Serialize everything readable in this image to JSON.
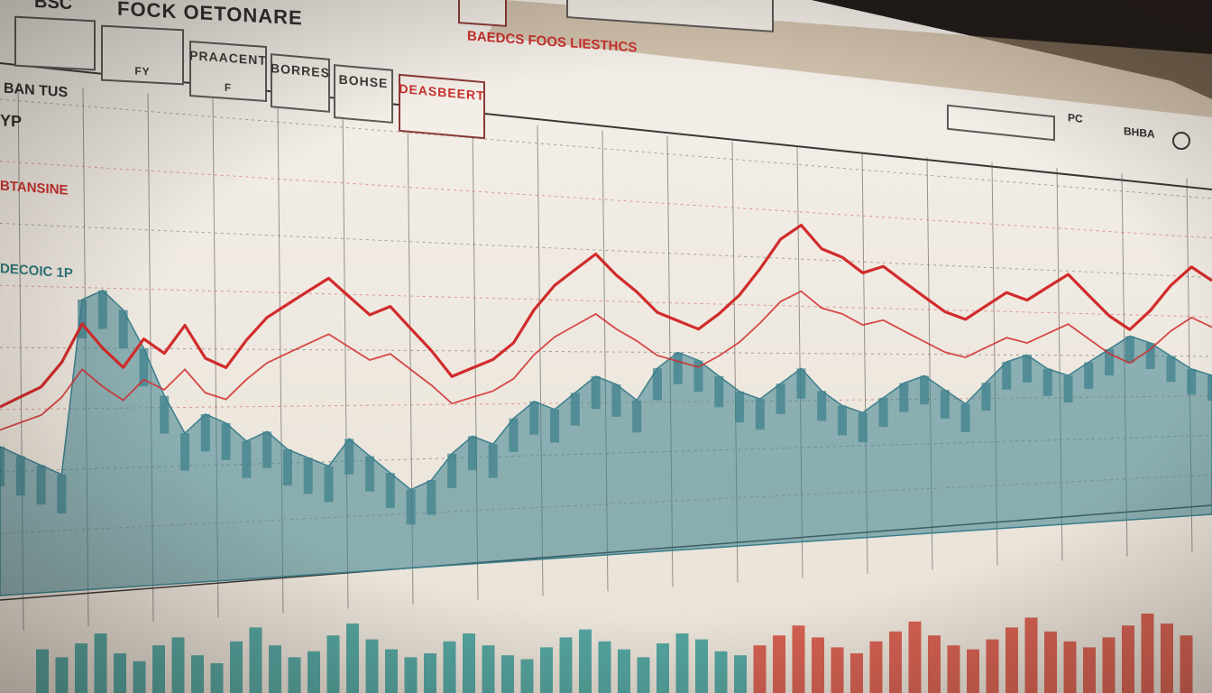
{
  "header": {
    "app_title": "FOCK OETONARE",
    "app_title_prefix": "BSC",
    "top_tab_left": "",
    "top_tab_right": ""
  },
  "toolbar": {
    "buttons": [
      {
        "label": "",
        "sub": ""
      },
      {
        "label": "",
        "sub": "FY"
      },
      {
        "label": "PRAACENT",
        "sub": "F"
      },
      {
        "label": "BORRES",
        "sub": ""
      },
      {
        "label": "BOHSE",
        "sub": ""
      }
    ],
    "active_tab": "DEASBEERT",
    "chart_title": "BAEDCS FOOS LIESTHCS"
  },
  "sidebar": {
    "items": [
      {
        "label": "BAN TUS",
        "accent": "dark"
      },
      {
        "label": "YP",
        "accent": "dark"
      },
      {
        "label": "BTANSINE",
        "accent": "red"
      },
      {
        "label": "DECOIC 1P",
        "accent": "teal"
      }
    ]
  },
  "right_panel": {
    "input_value": "",
    "labels": [
      "PC",
      "BHBA"
    ]
  },
  "chart_data": {
    "type": "line",
    "title": "BAEDCS FOOS LIESTHCS",
    "xlabel": "",
    "ylabel": "",
    "series": [
      {
        "color": "#d12b2b",
        "values": [
          38,
          40,
          42,
          47,
          55,
          50,
          46,
          52,
          49,
          55,
          48,
          46,
          52,
          57,
          60,
          63,
          66,
          62,
          58,
          60,
          55,
          50,
          44,
          46,
          48,
          52,
          60,
          66,
          70,
          74,
          69,
          65,
          60,
          58,
          56,
          60,
          65,
          72,
          80,
          84,
          78,
          76,
          72,
          74,
          70,
          66,
          62,
          60,
          64,
          68,
          66,
          70,
          74,
          68,
          62,
          58,
          64,
          72,
          78,
          74
        ]
      },
      {
        "color": "#3b7f8c",
        "values": [
          30,
          28,
          26,
          24,
          60,
          62,
          58,
          50,
          40,
          32,
          36,
          34,
          30,
          32,
          28,
          26,
          24,
          30,
          26,
          22,
          18,
          20,
          26,
          30,
          28,
          34,
          38,
          36,
          40,
          44,
          42,
          38,
          46,
          50,
          48,
          44,
          40,
          38,
          42,
          46,
          40,
          36,
          34,
          38,
          42,
          44,
          40,
          36,
          42,
          48,
          50,
          46,
          44,
          48,
          52,
          56,
          54,
          50,
          46,
          44
        ]
      }
    ],
    "volume": [
      22,
      18,
      25,
      30,
      20,
      16,
      24,
      28,
      19,
      15,
      26,
      33,
      24,
      18,
      21,
      29,
      35,
      27,
      22,
      18,
      20,
      26,
      30,
      24,
      19,
      17,
      23,
      28,
      32,
      26,
      22,
      18,
      25,
      30,
      27,
      21,
      19,
      24,
      29,
      34,
      28,
      23,
      20,
      26,
      31,
      36,
      29,
      24,
      22,
      27,
      33,
      38,
      31,
      26,
      23,
      28,
      34,
      40,
      35,
      29
    ],
    "ylim": [
      0,
      100
    ]
  },
  "colors": {
    "red_line": "#d12b2b",
    "teal_fill": "#3b7f8c",
    "background": "#f1ece4",
    "frame": "#6b5444"
  }
}
